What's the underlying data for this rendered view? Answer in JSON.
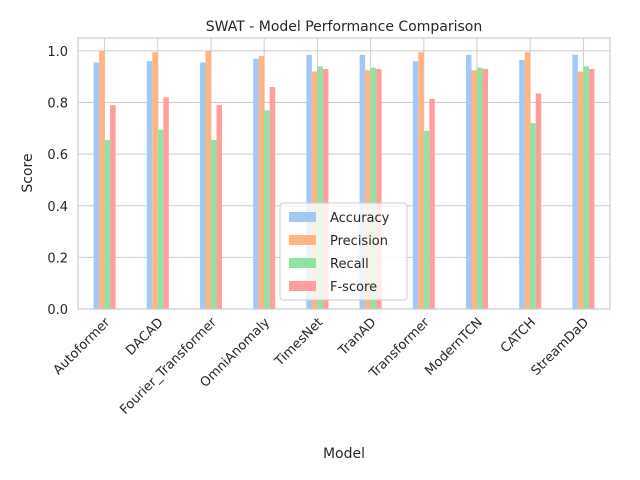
{
  "chart_data": {
    "type": "bar",
    "title": "SWAT - Model Performance Comparison",
    "xlabel": "Model",
    "ylabel": "Score",
    "ylim": [
      0,
      1.05
    ],
    "yticks": [
      "0.0",
      "0.2",
      "0.4",
      "0.6",
      "0.8",
      "1.0"
    ],
    "ytick_values": [
      0,
      0.2,
      0.4,
      0.6,
      0.8,
      1.0
    ],
    "grid": true,
    "legend_position": "bottom-center",
    "categories": [
      "Autoformer",
      "DACAD",
      "Fourier_Transformer",
      "OmniAnomaly",
      "TimesNet",
      "TranAD",
      "Transformer",
      "ModernTCN",
      "CATCH",
      "StreamDaD"
    ],
    "series": [
      {
        "name": "Accuracy",
        "color": "#a1c9f4",
        "values": [
          0.955,
          0.96,
          0.955,
          0.97,
          0.985,
          0.985,
          0.96,
          0.985,
          0.965,
          0.985
        ]
      },
      {
        "name": "Precision",
        "color": "#ffb482",
        "values": [
          1.0,
          0.995,
          1.0,
          0.98,
          0.92,
          0.925,
          0.995,
          0.925,
          0.995,
          0.92
        ]
      },
      {
        "name": "Recall",
        "color": "#8de5a1",
        "values": [
          0.655,
          0.695,
          0.655,
          0.77,
          0.94,
          0.935,
          0.69,
          0.935,
          0.72,
          0.94
        ]
      },
      {
        "name": "F-score",
        "color": "#ff9f9b",
        "values": [
          0.79,
          0.82,
          0.79,
          0.86,
          0.93,
          0.93,
          0.815,
          0.93,
          0.835,
          0.93
        ]
      }
    ]
  }
}
